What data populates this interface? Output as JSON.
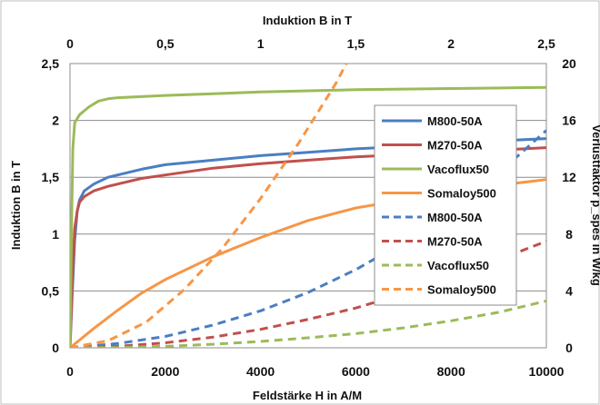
{
  "chart_data": {
    "type": "line",
    "top_xlabel": "Induktion B in T",
    "xlabel": "Feldstärke H in A/M",
    "ylabel": "Induktion B in T",
    "y2label": "Verlustfaktor p_spes in W/kg",
    "xlim": [
      0,
      10000
    ],
    "ylim": [
      0,
      2.5
    ],
    "top_xlim": [
      0,
      2.5
    ],
    "y2lim": [
      0,
      20
    ],
    "x_ticks": [
      "0",
      "2000",
      "4000",
      "6000",
      "8000",
      "10000"
    ],
    "y_ticks": [
      "0",
      "0,5",
      "1",
      "1,5",
      "2",
      "2,5"
    ],
    "top_x_ticks": [
      "0",
      "0,5",
      "1",
      "1,5",
      "2",
      "2,5"
    ],
    "y2_ticks": [
      "0",
      "4",
      "8",
      "12",
      "16",
      "20"
    ],
    "grid": true,
    "legend_position": "right",
    "series": [
      {
        "name": "M800-50A",
        "color": "#4a7ec3",
        "dashed": false,
        "axis": "bottom-left",
        "x": [
          0,
          50,
          100,
          150,
          200,
          300,
          500,
          800,
          1000,
          1500,
          2000,
          3000,
          4000,
          5000,
          6000,
          7000,
          8000,
          9000,
          10000
        ],
        "y": [
          0,
          0.5,
          0.95,
          1.2,
          1.3,
          1.38,
          1.44,
          1.5,
          1.52,
          1.57,
          1.61,
          1.65,
          1.69,
          1.72,
          1.75,
          1.77,
          1.79,
          1.82,
          1.84
        ]
      },
      {
        "name": "M270-50A",
        "color": "#c0504d",
        "dashed": false,
        "axis": "bottom-left",
        "x": [
          0,
          50,
          100,
          150,
          200,
          300,
          500,
          800,
          1000,
          1500,
          2000,
          3000,
          4000,
          5000,
          6000,
          7000,
          8000,
          9000,
          10000
        ],
        "y": [
          0,
          0.6,
          1.05,
          1.2,
          1.28,
          1.33,
          1.38,
          1.42,
          1.44,
          1.49,
          1.52,
          1.58,
          1.62,
          1.65,
          1.68,
          1.7,
          1.72,
          1.74,
          1.76
        ]
      },
      {
        "name": "Vacoflux50",
        "color": "#9bbb59",
        "dashed": false,
        "axis": "bottom-left",
        "x": [
          0,
          30,
          60,
          100,
          200,
          400,
          600,
          800,
          1000,
          2000,
          4000,
          6000,
          8000,
          10000
        ],
        "y": [
          0,
          1.0,
          1.75,
          1.98,
          2.05,
          2.12,
          2.17,
          2.19,
          2.2,
          2.22,
          2.25,
          2.27,
          2.28,
          2.29
        ]
      },
      {
        "name": "Somaloy500",
        "color": "#f79646",
        "dashed": false,
        "axis": "bottom-left",
        "x": [
          0,
          500,
          1000,
          1500,
          2000,
          3000,
          4000,
          5000,
          6000,
          7000,
          8000,
          9000,
          10000
        ],
        "y": [
          0,
          0.17,
          0.33,
          0.48,
          0.6,
          0.8,
          0.97,
          1.12,
          1.23,
          1.3,
          1.37,
          1.43,
          1.48
        ]
      },
      {
        "name": "M800-50A",
        "color": "#4a7ec3",
        "dashed": true,
        "axis": "top-right",
        "x": [
          0,
          0.25,
          0.5,
          0.75,
          1.0,
          1.25,
          1.5,
          1.75,
          2.0,
          2.25,
          2.5
        ],
        "y": [
          0,
          0.3,
          0.8,
          1.6,
          2.6,
          3.9,
          5.5,
          7.4,
          9.7,
          12.3,
          15.3
        ]
      },
      {
        "name": "M270-50A",
        "color": "#c0504d",
        "dashed": true,
        "axis": "top-right",
        "x": [
          0,
          0.25,
          0.5,
          0.75,
          1.0,
          1.25,
          1.5,
          1.75,
          2.0,
          2.25,
          2.5
        ],
        "y": [
          0,
          0.1,
          0.35,
          0.75,
          1.3,
          2.0,
          2.8,
          3.8,
          4.9,
          6.2,
          7.5
        ]
      },
      {
        "name": "Vacoflux50",
        "color": "#9bbb59",
        "dashed": true,
        "axis": "top-right",
        "x": [
          0,
          0.25,
          0.5,
          0.75,
          1.0,
          1.25,
          1.5,
          1.75,
          2.0,
          2.25,
          2.5
        ],
        "y": [
          0,
          0.02,
          0.1,
          0.25,
          0.45,
          0.7,
          1.0,
          1.4,
          1.9,
          2.5,
          3.3
        ]
      },
      {
        "name": "Somaloy500",
        "color": "#f79646",
        "dashed": true,
        "axis": "top-right",
        "x": [
          0,
          0.2,
          0.4,
          0.6,
          0.8,
          1.0,
          1.2,
          1.4,
          1.45
        ],
        "y": [
          0,
          0.5,
          1.8,
          4.1,
          7.0,
          10.5,
          14.4,
          18.7,
          20
        ]
      }
    ]
  }
}
